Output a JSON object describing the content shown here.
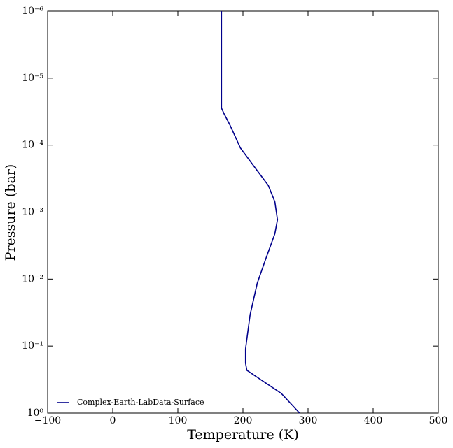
{
  "chart_data": {
    "type": "line",
    "xlabel": "Temperature (K)",
    "ylabel": "Pressure (bar)",
    "series": [
      {
        "name": "Complex-Earth-LabData-Surface",
        "color": "#00008b",
        "x": [
          167,
          167,
          171,
          180,
          196,
          219,
          239,
          249,
          253,
          249,
          235,
          222,
          211,
          204,
          204,
          206,
          230,
          259,
          287
        ],
        "values": [
          1e-06,
          2.8e-05,
          3.4e-05,
          5e-05,
          0.00011,
          0.00022,
          0.0004,
          0.0007,
          0.0013,
          0.0021,
          0.005,
          0.0115,
          0.034,
          0.11,
          0.18,
          0.23,
          0.33,
          0.51,
          1
        ]
      }
    ],
    "xlim": [
      -100,
      500
    ],
    "xticks": [
      {
        "value": -100,
        "label": "−100"
      },
      0,
      100,
      200,
      300,
      400,
      500
    ],
    "ylim": [
      1e-06,
      1
    ],
    "yticks": [
      {
        "value": 1e-06,
        "label": "10⁻⁶"
      },
      {
        "value": 1e-05,
        "label": "10⁻⁵"
      },
      {
        "value": 0.0001,
        "label": "10⁻⁴"
      },
      {
        "value": 0.001,
        "label": "10⁻³"
      },
      {
        "value": 0.01,
        "label": "10⁻²"
      },
      {
        "value": 0.1,
        "label": "10⁻¹"
      },
      {
        "value": 1,
        "label": "10⁰"
      }
    ],
    "ylog": true,
    "yinvert": true,
    "legend": "lower left"
  }
}
